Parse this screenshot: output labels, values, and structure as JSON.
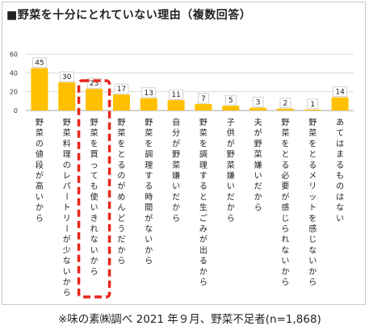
{
  "title": "■野菜を十分にとれていない理由（複数回答）",
  "caption": "※味の素㈱調べ  2021 年９月、野菜不足者(n=1,868)",
  "colors": {
    "bar": "#ffc000",
    "highlight": "#e8251a",
    "grid": "#d9d9d9",
    "label_box_stroke": "#bfbfbf"
  },
  "chart_data": {
    "type": "bar",
    "title": "■野菜を十分にとれていない理由（複数回答）",
    "categories": [
      "野菜の値段が高いから",
      "野菜料理のレパートリーが少ないから",
      "野菜を買っても使いきれないから",
      "野菜をとるのがめんどうだから",
      "野菜を調理する時間がないから",
      "自分が野菜嫌いだから",
      "野菜を調理すると生ごみが出るから",
      "子供が野菜嫌いだから",
      "夫が野菜嫌いだから",
      "野菜をとる必要が感じられないから",
      "野菜をとるメリットを感じないから",
      "あてはまるものはない"
    ],
    "values": [
      45,
      30,
      23,
      17,
      13,
      11,
      7,
      5,
      3,
      2,
      1,
      14
    ],
    "highlight_index": 2,
    "ylim": [
      0,
      60
    ],
    "yticks": [
      0,
      20,
      40,
      60
    ],
    "grid": true,
    "xlabel": "",
    "ylabel": ""
  }
}
